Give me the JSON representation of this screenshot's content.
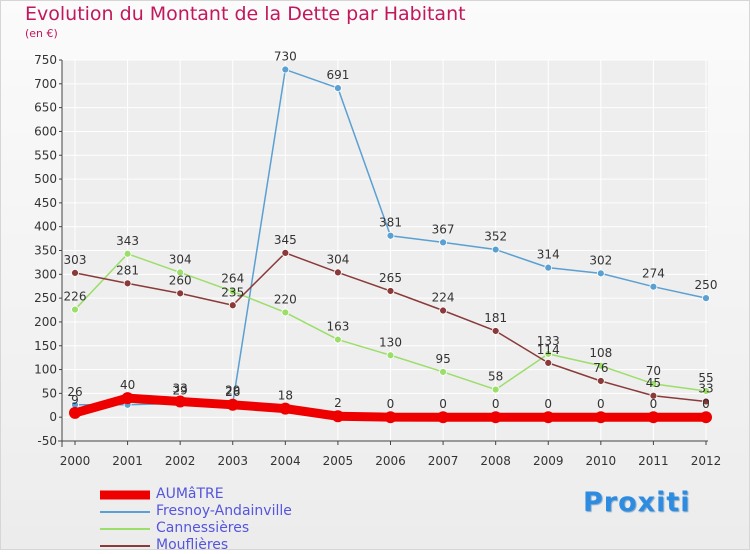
{
  "title": "Evolution du Montant de la Dette par Habitant",
  "subtitle": "(en €)",
  "logo_text": "Proxiti",
  "colors": {
    "title": "#c2185b",
    "legend_text": "#5555dd",
    "grid": "#ffffff"
  },
  "chart_data": {
    "type": "line",
    "title": "Evolution du Montant de la Dette par Habitant",
    "subtitle": "(en €)",
    "xlabel": "",
    "ylabel": "",
    "x": [
      "2000",
      "2001",
      "2002",
      "2003",
      "2004",
      "2005",
      "2006",
      "2007",
      "2008",
      "2009",
      "2010",
      "2011",
      "2012"
    ],
    "ylim": [
      -50,
      750
    ],
    "yticks": [
      -50,
      0,
      50,
      100,
      150,
      200,
      250,
      300,
      350,
      400,
      450,
      500,
      550,
      600,
      650,
      700,
      750
    ],
    "grid": true,
    "legend_position": "bottom-left",
    "series": [
      {
        "name": "AUMâTRE",
        "color": "#ee0000",
        "values": [
          9,
          40,
          33,
          26,
          18,
          2,
          0,
          0,
          0,
          0,
          0,
          0,
          0
        ],
        "labels": [
          "9",
          "40",
          "33",
          "26",
          "18",
          "2",
          "0",
          "0",
          "0",
          "0",
          "0",
          "0",
          "0"
        ]
      },
      {
        "name": "Fresnoy-Andainville",
        "color": "#5aa0d2",
        "values": [
          26,
          26,
          29,
          29,
          730,
          691,
          381,
          367,
          352,
          314,
          302,
          274,
          250
        ],
        "labels": [
          "26",
          "",
          "29",
          "29",
          "730",
          "691",
          "381",
          "367",
          "352",
          "314",
          "302",
          "274",
          "250"
        ]
      },
      {
        "name": "Cannessières",
        "color": "#9bde6a",
        "values": [
          226,
          343,
          304,
          264,
          220,
          163,
          130,
          95,
          58,
          133,
          108,
          70,
          55
        ],
        "labels": [
          "226",
          "343",
          "304",
          "264",
          "220",
          "163",
          "130",
          "95",
          "58",
          "133",
          "108",
          "70",
          "55"
        ]
      },
      {
        "name": "Mouflières",
        "color": "#8b3a3a",
        "values": [
          303,
          281,
          260,
          235,
          345,
          304,
          265,
          224,
          181,
          114,
          76,
          45,
          33
        ],
        "labels": [
          "303",
          "281",
          "260",
          "235",
          "345",
          "304",
          "265",
          "224",
          "181",
          "114",
          "76",
          "45",
          "33"
        ]
      }
    ]
  }
}
